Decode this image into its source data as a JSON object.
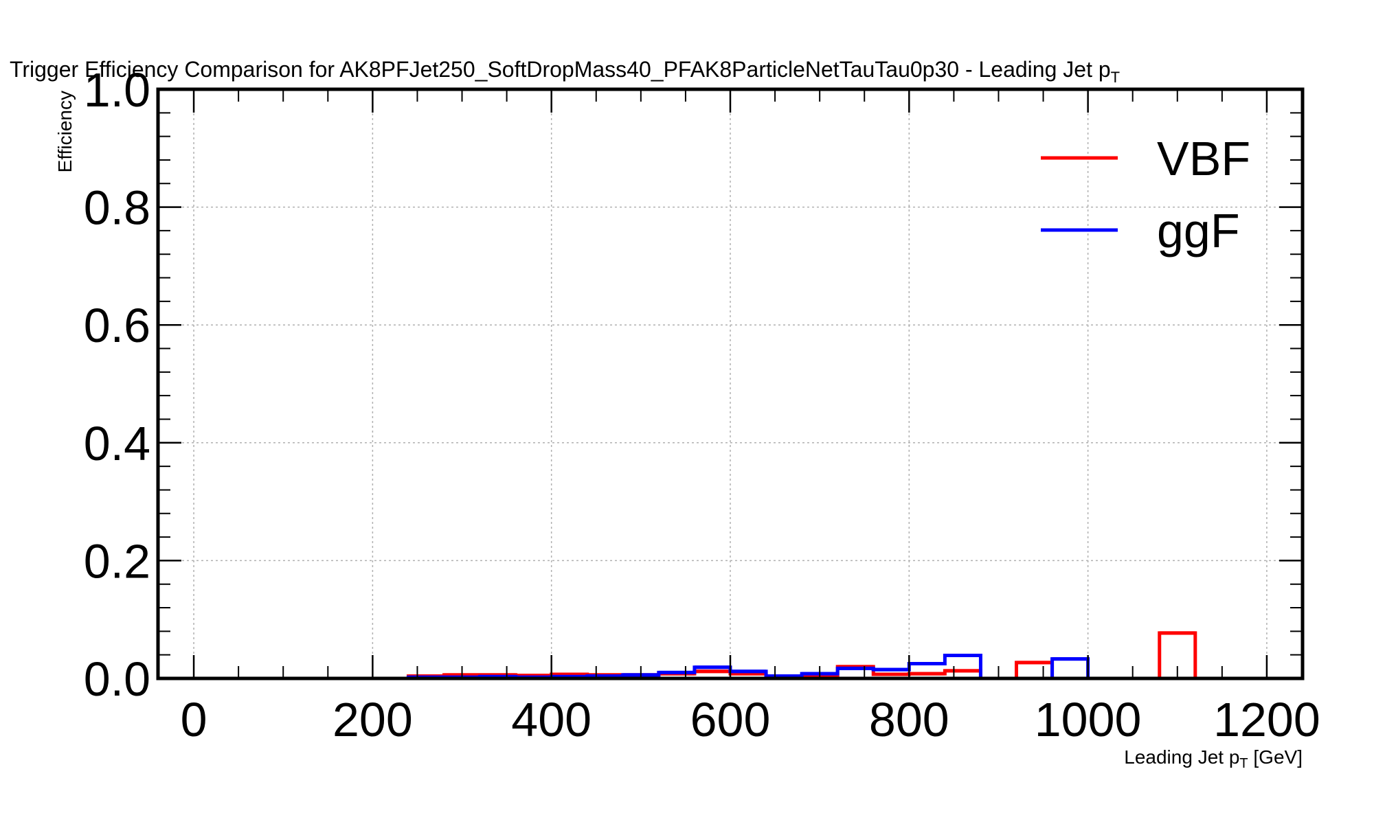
{
  "chart_data": {
    "type": "step",
    "title": "Trigger Efficiency Comparison for AK8PFJet250_SoftDropMass40_PFAK8ParticleNetTauTau0p30 - Leading Jet p",
    "title_subscript": "T",
    "xlabel_main": "Leading Jet p",
    "xlabel_subscript": "T",
    "xlabel_unit": " [GeV]",
    "ylabel": "Efficiency",
    "xlim": [
      -40,
      1240
    ],
    "ylim": [
      0,
      1.0
    ],
    "x_ticks": [
      0,
      200,
      400,
      600,
      800,
      1000,
      1200
    ],
    "x_tick_labels": [
      "0",
      "200",
      "400",
      "600",
      "800",
      "1000",
      "1200"
    ],
    "y_ticks": [
      0,
      0.2,
      0.4,
      0.6,
      0.8,
      1.0
    ],
    "y_tick_labels": [
      "0.0",
      "0.2",
      "0.4",
      "0.6",
      "0.8",
      "1.0"
    ],
    "grid": true,
    "legend_position": "top-right",
    "bin_edges": [
      240,
      280,
      320,
      360,
      400,
      440,
      480,
      520,
      560,
      600,
      640,
      680,
      720,
      760,
      800,
      840,
      880,
      920,
      960,
      1000,
      1040,
      1080,
      1120,
      1160
    ],
    "series": [
      {
        "name": "VBF",
        "color": "#ff0000",
        "values": [
          0.004,
          0.006,
          0.006,
          0.005,
          0.007,
          0.006,
          0.006,
          0.008,
          0.012,
          0.008,
          0.003,
          0.005,
          0.02,
          0.007,
          0.008,
          0.013,
          0.0,
          0.027,
          0.0,
          0.0,
          0.0,
          0.077,
          0.0
        ]
      },
      {
        "name": "ggF",
        "color": "#0000ff",
        "values": [
          0.002,
          0.002,
          0.003,
          0.002,
          0.003,
          0.004,
          0.006,
          0.01,
          0.019,
          0.012,
          0.004,
          0.008,
          0.017,
          0.015,
          0.025,
          0.039,
          0.0,
          0.0,
          0.033,
          0.0,
          0.0,
          0.0,
          0.0
        ]
      }
    ]
  }
}
